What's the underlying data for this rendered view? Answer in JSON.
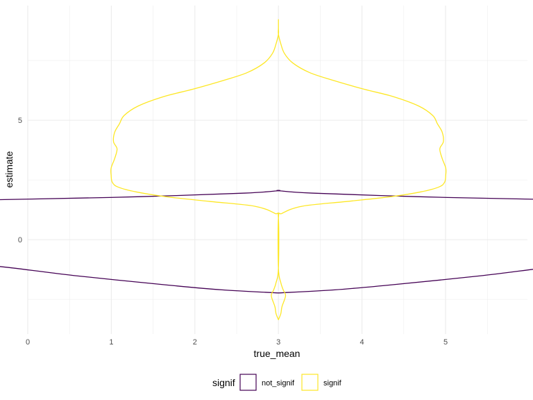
{
  "chart_data": {
    "type": "violin",
    "title": "",
    "xlabel": "true_mean",
    "ylabel": "estimate",
    "xlim": [
      0,
      5.98
    ],
    "ylim": [
      -3.95,
      9.8
    ],
    "x_ticks": [
      "0",
      "1",
      "2",
      "3",
      "4",
      "5"
    ],
    "y_ticks": [
      "0",
      "5"
    ],
    "grid": true,
    "legend": {
      "position": "bottom",
      "title": "signif",
      "entries": [
        "not_signif",
        "signif"
      ]
    },
    "colors": {
      "not_signif": "#440154",
      "signif": "#fde725"
    },
    "series": [
      {
        "name": "not_signif",
        "center_x": 3,
        "max_halfwidth": 2.5,
        "profile": [
          [
            -2.23,
            0.0
          ],
          [
            -2.1,
            0.27
          ],
          [
            -1.9,
            0.53
          ],
          [
            -1.5,
            0.98
          ],
          [
            -1.1,
            1.36
          ],
          [
            -0.8,
            1.79
          ],
          [
            -0.6,
            1.95
          ],
          [
            -0.2,
            1.99
          ],
          [
            -0.1,
            2.03
          ],
          [
            0.0,
            2.2
          ],
          [
            0.2,
            2.53
          ],
          [
            0.4,
            2.66
          ],
          [
            0.55,
            2.72
          ],
          [
            0.7,
            2.65
          ],
          [
            0.88,
            2.56
          ],
          [
            1.0,
            2.57
          ],
          [
            1.13,
            2.5
          ],
          [
            1.25,
            2.44
          ],
          [
            1.45,
            2.33
          ],
          [
            1.55,
            2.05
          ],
          [
            1.7,
            1.18
          ],
          [
            1.8,
            0.66
          ],
          [
            1.95,
            0.16
          ],
          [
            2.05,
            0.0
          ]
        ]
      },
      {
        "name": "signif",
        "center_x": 3,
        "max_halfwidth": 1.42,
        "profile": [
          [
            -3.35,
            0.0
          ],
          [
            -3.1,
            0.02
          ],
          [
            -2.8,
            0.03
          ],
          [
            -2.35,
            0.06
          ],
          [
            -2.1,
            0.04
          ],
          [
            -1.8,
            0.02
          ],
          [
            -1.2,
            0.0
          ],
          [
            0.9,
            0.0
          ],
          [
            1.1,
            0.03
          ],
          [
            1.4,
            0.2
          ],
          [
            1.6,
            0.58
          ],
          [
            1.8,
            0.95
          ],
          [
            2.0,
            1.2
          ],
          [
            2.2,
            1.35
          ],
          [
            2.4,
            1.4
          ],
          [
            2.7,
            1.41
          ],
          [
            3.0,
            1.41
          ],
          [
            3.4,
            1.38
          ],
          [
            3.8,
            1.36
          ],
          [
            4.1,
            1.39
          ],
          [
            4.5,
            1.38
          ],
          [
            4.85,
            1.34
          ],
          [
            5.2,
            1.3
          ],
          [
            5.6,
            1.18
          ],
          [
            6.0,
            0.96
          ],
          [
            6.3,
            0.72
          ],
          [
            6.7,
            0.44
          ],
          [
            7.0,
            0.26
          ],
          [
            7.4,
            0.12
          ],
          [
            7.8,
            0.05
          ],
          [
            8.2,
            0.02
          ],
          [
            8.6,
            0.0
          ],
          [
            8.85,
            0.0
          ],
          [
            9.17,
            0.0
          ]
        ]
      }
    ]
  }
}
